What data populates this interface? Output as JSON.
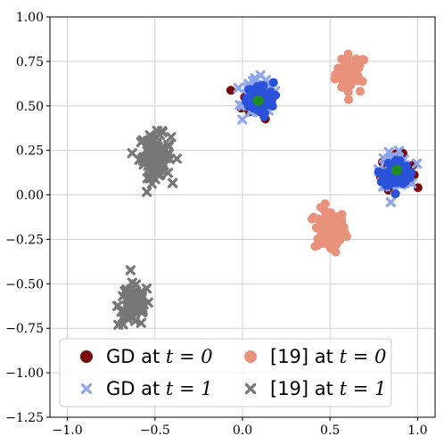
{
  "chart_data": {
    "type": "scatter",
    "xlim": [
      -1.1,
      1.1
    ],
    "ylim": [
      -1.25,
      1.0
    ],
    "xticks": [
      -1.0,
      -0.5,
      0.0,
      0.5,
      1.0
    ],
    "xtick_labels": [
      "−1.0",
      "−0.5",
      "0.0",
      "0.5",
      "1.0"
    ],
    "yticks": [
      1.0,
      0.75,
      0.5,
      0.25,
      0.0,
      -0.25,
      -0.5,
      -0.75,
      -1.0,
      -1.25
    ],
    "ytick_labels": [
      "1.00",
      "0.75",
      "0.50",
      "0.25",
      "0.00",
      "−0.25",
      "−0.50",
      "−0.75",
      "−1.00",
      "−1.25"
    ],
    "grid": true,
    "legend_position": "lower-left",
    "series": [
      {
        "name": "GD at t = 0",
        "legend_prefix": "GD at ",
        "legend_math": "t = 0",
        "marker": "circle",
        "color": "#7a0a0a",
        "clusters": [
          {
            "center": [
              0.09,
              0.53
            ],
            "spread": [
              0.045,
              0.05
            ],
            "count": 45
          },
          {
            "center": [
              0.88,
              0.13
            ],
            "spread": [
              0.045,
              0.045
            ],
            "count": 40
          }
        ]
      },
      {
        "name": "[19] at t = 0",
        "legend_prefix": "[19] at ",
        "legend_math": "t = 0",
        "marker": "circle",
        "color": "#e8927c",
        "clusters": [
          {
            "center": [
              0.62,
              0.68
            ],
            "spread": [
              0.045,
              0.055
            ],
            "count": 45
          },
          {
            "center": [
              0.5,
              -0.2
            ],
            "spread": [
              0.045,
              0.06
            ],
            "count": 90
          }
        ]
      },
      {
        "name": "GD at t = 1",
        "legend_prefix": "GD at ",
        "legend_math": "t = 1",
        "marker": "x",
        "color": "#8fa6ee",
        "clusters": [
          {
            "center": [
              0.09,
              0.55
            ],
            "spread": [
              0.04,
              0.05
            ],
            "count": 90
          },
          {
            "center": [
              0.87,
              0.14
            ],
            "spread": [
              0.04,
              0.045
            ],
            "count": 80
          }
        ]
      },
      {
        "name": "[19] at t = 1",
        "legend_prefix": "[19] at ",
        "legend_math": "t = 1",
        "marker": "x",
        "color": "#777777",
        "clusters": [
          {
            "center": [
              -0.5,
              0.22
            ],
            "spread": [
              0.045,
              0.06
            ],
            "count": 95
          },
          {
            "center": [
              -0.62,
              -0.62
            ],
            "spread": [
              0.045,
              0.06
            ],
            "count": 75
          }
        ]
      }
    ],
    "overlay_points": [
      {
        "color": "#2a52d8",
        "marker": "circle",
        "center": [
          0.1,
          0.54
        ],
        "spread": [
          0.038,
          0.045
        ],
        "count": 80
      },
      {
        "color": "#2a52d8",
        "marker": "circle",
        "center": [
          0.88,
          0.12
        ],
        "spread": [
          0.035,
          0.04
        ],
        "count": 70
      }
    ],
    "means": [
      {
        "color": "#1f8c1f",
        "x": 0.09,
        "y": 0.53
      },
      {
        "color": "#1f8c1f",
        "x": 0.88,
        "y": 0.14
      }
    ],
    "legend_layout": [
      [
        "GD at t = 0",
        "[19] at t = 0"
      ],
      [
        "GD at t = 1",
        "[19] at t = 1"
      ]
    ]
  }
}
